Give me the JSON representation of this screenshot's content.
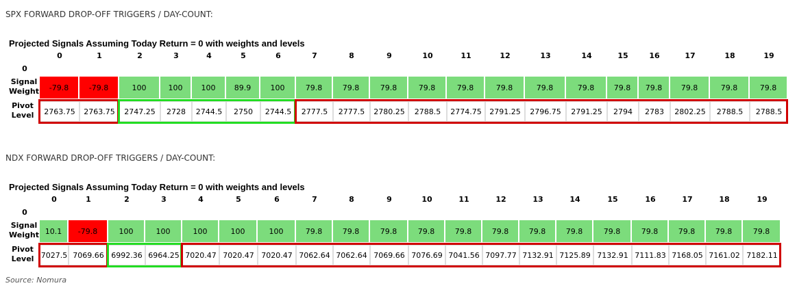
{
  "source": "Source: Nomura",
  "tables": [
    {
      "title": "SPX FORWARD DROP-OFF TRIGGERS / DAY-COUNT:",
      "subtitle": "Projected Signals Assuming Today Return = 0 with weights and levels",
      "corner": "0",
      "days": [
        0,
        1,
        2,
        3,
        4,
        5,
        6,
        7,
        8,
        9,
        10,
        11,
        12,
        13,
        14,
        15,
        16,
        17,
        18,
        19
      ],
      "row_labels": [
        "Signal Weight",
        "Pivot Level"
      ],
      "weights": [
        -79.8,
        -79.8,
        100,
        100,
        100,
        89.9,
        100,
        79.8,
        79.8,
        79.8,
        79.8,
        79.8,
        79.8,
        79.8,
        79.8,
        79.8,
        79.8,
        79.8,
        79.8,
        79.8
      ],
      "levels": [
        2763.75,
        2763.75,
        2747.25,
        2728,
        2744.5,
        2750,
        2744.5,
        2777.5,
        2777.5,
        2780.25,
        2788.5,
        2774.75,
        2791.25,
        2796.75,
        2791.25,
        2794,
        2783,
        2802.25,
        2788.5,
        2788.5
      ]
    },
    {
      "title": "NDX FORWARD DROP-OFF TRIGGERS / DAY-COUNT:",
      "subtitle": "Projected Signals Assuming Today Return = 0 with weights and levels",
      "corner": "0",
      "days": [
        0,
        1,
        2,
        3,
        4,
        5,
        6,
        7,
        8,
        9,
        10,
        11,
        12,
        13,
        14,
        15,
        16,
        17,
        18,
        19
      ],
      "row_labels": [
        "Signal Weight",
        "Pivot Level"
      ],
      "weights": [
        10.1,
        -79.8,
        100,
        100,
        100,
        100,
        100,
        79.8,
        79.8,
        79.8,
        79.8,
        79.8,
        79.8,
        79.8,
        79.8,
        79.8,
        79.8,
        79.8,
        79.8,
        79.8
      ],
      "levels": [
        7027.5,
        7069.66,
        6992.36,
        6964.25,
        7020.47,
        7020.47,
        7020.47,
        7062.64,
        7062.64,
        7069.66,
        7076.69,
        7041.56,
        7097.77,
        7132.91,
        7125.89,
        7132.91,
        7111.83,
        7168.05,
        7161.02,
        7182.11
      ]
    }
  ]
}
